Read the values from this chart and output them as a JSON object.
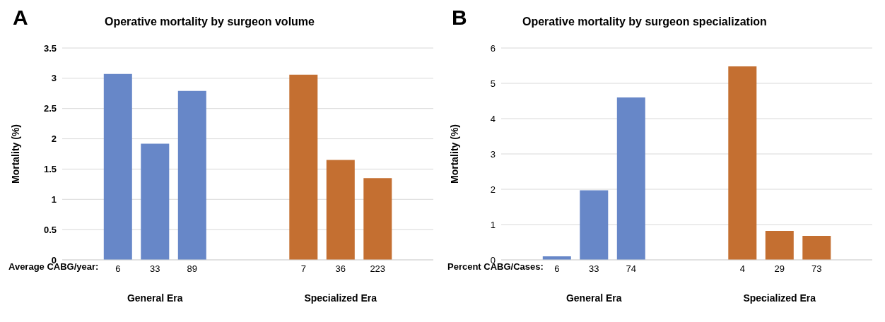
{
  "chart_data": [
    {
      "type": "bar",
      "title": "Operative mortality by surgeon volume",
      "ylabel": "Mortality (%)",
      "categories": [
        null,
        "6",
        "33",
        "89",
        null,
        null,
        "7",
        "36",
        "223",
        null
      ],
      "values": [
        null,
        3.07,
        1.92,
        2.79,
        null,
        null,
        3.06,
        1.65,
        1.35,
        null
      ],
      "colors": [
        null,
        "#6787c8",
        "#6787c8",
        "#6787c8",
        null,
        null,
        "#c46f31",
        "#c46f31",
        "#c46f31",
        null
      ],
      "ylim": [
        0,
        3.5
      ],
      "yticks": [
        0,
        0.5,
        1,
        1.5,
        2,
        2.5,
        3,
        3.5
      ],
      "grid": "y",
      "annotations": [
        "A",
        "Average CABG/year:",
        "General Era",
        "Specialized Era"
      ]
    },
    {
      "type": "bar",
      "title": "Operative mortality by surgeon specialization",
      "ylabel": "Mortality (%)",
      "categories": [
        null,
        "6",
        "33",
        "74",
        null,
        null,
        "4",
        "29",
        "73",
        null
      ],
      "values": [
        null,
        0.1,
        1.97,
        4.6,
        null,
        null,
        5.48,
        0.82,
        0.68,
        null
      ],
      "colors": [
        null,
        "#6787c8",
        "#6787c8",
        "#6787c8",
        null,
        null,
        "#c46f31",
        "#c46f31",
        "#c46f31",
        null
      ],
      "ylim": [
        0,
        6
      ],
      "yticks": [
        0,
        1,
        2,
        3,
        4,
        5,
        6
      ],
      "grid": "y",
      "annotations": [
        "B",
        "Percent CABG/Cases:",
        "General Era",
        "Specialized Era"
      ]
    }
  ]
}
